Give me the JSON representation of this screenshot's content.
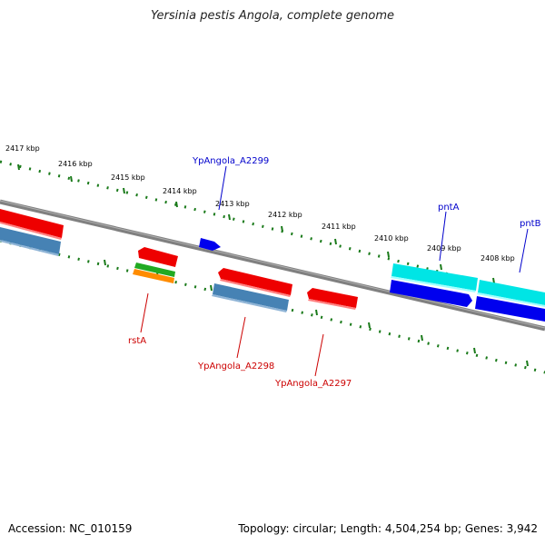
{
  "title": "Yersinia pestis Angola, complete genome",
  "footer": {
    "accession": "Accession: NC_010159",
    "summary": "Topology: circular; Length: 4,504,254 bp; Genes: 3,942"
  },
  "colors": {
    "backbone": "#808080",
    "ticks": "#1a7a1a",
    "top_label": "#0000cc",
    "bottom_label": "#cc0000"
  },
  "scale_labels": [
    "2417 kbp",
    "2416 kbp",
    "2415 kbp",
    "2414 kbp",
    "2413 kbp",
    "2412 kbp",
    "2411 kbp",
    "2410 kbp",
    "2409 kbp",
    "2408 kbp"
  ],
  "gene_labels_top": [
    "YpAngola_A2299",
    "pntA",
    "pntB"
  ],
  "gene_labels_bottom": [
    "rstA",
    "YpAngola_A2298",
    "YpAngola_A2297"
  ],
  "feature_colors": [
    "red",
    "steelblue",
    "blue",
    "green",
    "orange",
    "cyan"
  ]
}
